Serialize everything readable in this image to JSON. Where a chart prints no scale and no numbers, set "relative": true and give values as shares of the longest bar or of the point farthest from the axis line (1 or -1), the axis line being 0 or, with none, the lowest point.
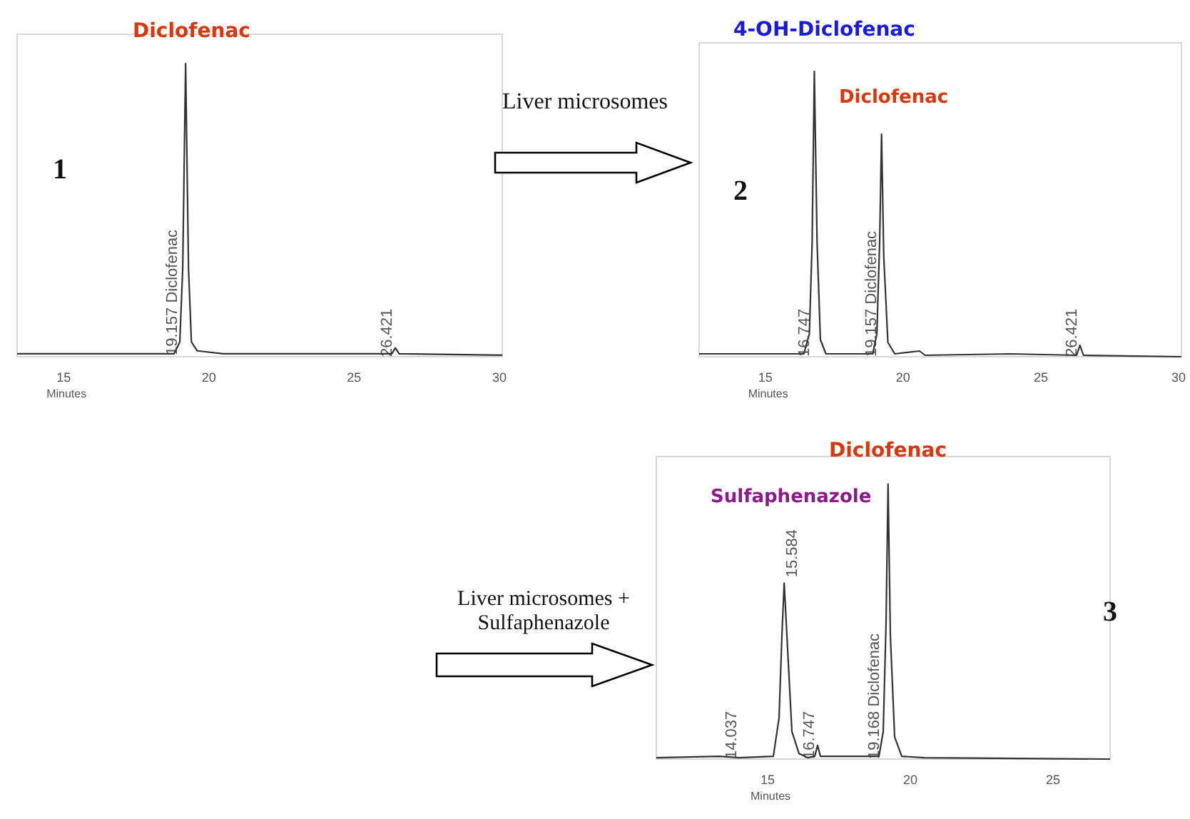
{
  "chart_data": [
    {
      "type": "line",
      "title": "Diclofenac",
      "xlabel": "Minutes",
      "relative": true,
      "tick_labels": "x",
      "grid": false,
      "marker": "none",
      "xlim": [
        13.4,
        30.1
      ],
      "xticks": [
        15,
        20,
        25,
        30
      ],
      "series": [
        {
          "color": "#333333",
          "x": [
            13.4,
            18.8,
            19.0,
            19.1,
            19.2,
            19.3,
            19.4,
            19.6,
            20.5,
            26.3,
            26.42,
            26.55,
            30.1
          ],
          "values": [
            0.01,
            0.01,
            0.05,
            0.3,
            1,
            0.3,
            0.05,
            0.02,
            0.01,
            0.01,
            0.03,
            0.01,
            0.005
          ]
        }
      ],
      "annotations": [
        "1",
        "19.157 Diclofenac",
        {
          "text": "26.421",
          "x": 26.421,
          "y": 0
        }
      ]
    },
    {
      "type": "line",
      "title": "4-OH-Diclofenac",
      "xlabel": "Minutes",
      "relative": true,
      "tick_labels": "x",
      "grid": false,
      "marker": "none",
      "xlim": [
        12.6,
        30.1
      ],
      "xticks": [
        15,
        20,
        25,
        30
      ],
      "series": [
        {
          "color": "#333333",
          "x": [
            12.6,
            16.4,
            16.6,
            16.7,
            16.78,
            16.88,
            17.0,
            17.2,
            18.9,
            19.05,
            19.15,
            19.22,
            19.3,
            19.45,
            19.7,
            20.6,
            20.8,
            23.9,
            26.3,
            26.42,
            26.55,
            30.1
          ],
          "values": [
            0.01,
            0.01,
            0.08,
            0.4,
            1,
            0.4,
            0.06,
            0.01,
            0.01,
            0.08,
            0.4,
            0.78,
            0.35,
            0.05,
            0.01,
            0.02,
            0.005,
            0.01,
            0.005,
            0.04,
            0.005,
            0
          ]
        }
      ],
      "annotations": [
        "Liver microsomes",
        "2",
        "Diclofenac",
        "16.747",
        {
          "text": "19.157 Diclofenac",
          "x": 19.157,
          "y": 0
        },
        {
          "text": "26.421",
          "x": 26.421,
          "y": 0
        }
      ]
    },
    {
      "type": "line",
      "title": "Diclofenac",
      "xlabel": "Minutes",
      "relative": true,
      "tick_labels": "x",
      "grid": false,
      "marker": "none",
      "xlim": [
        11.1,
        27.0
      ],
      "xticks": [
        15,
        20,
        25
      ],
      "series": [
        {
          "color": "#333333",
          "x": [
            11.1,
            13.3,
            14.0,
            15.2,
            15.4,
            15.5,
            15.58,
            15.7,
            15.85,
            16.1,
            16.4,
            16.65,
            16.75,
            16.85,
            18.9,
            19.05,
            19.15,
            19.22,
            19.3,
            19.45,
            19.7,
            20.5,
            27.0
          ],
          "values": [
            0.005,
            0.01,
            0.005,
            0.01,
            0.15,
            0.45,
            0.64,
            0.4,
            0.1,
            0.02,
            0.005,
            0.01,
            0.05,
            0.01,
            0.01,
            0.1,
            0.5,
            1,
            0.45,
            0.08,
            0.01,
            0.005,
            0
          ]
        }
      ],
      "annotations": [
        "Liver microsomes + Sulfaphenazole",
        "3",
        "Sulfaphenazole",
        {
          "text": "14.037",
          "x": 14.037,
          "y": 0
        },
        {
          "text": "15.584",
          "x": 15.584,
          "y": 0.64
        },
        {
          "text": "16.747",
          "x": 16.747,
          "y": 0
        },
        "19.168 Diclofenac"
      ]
    }
  ]
}
